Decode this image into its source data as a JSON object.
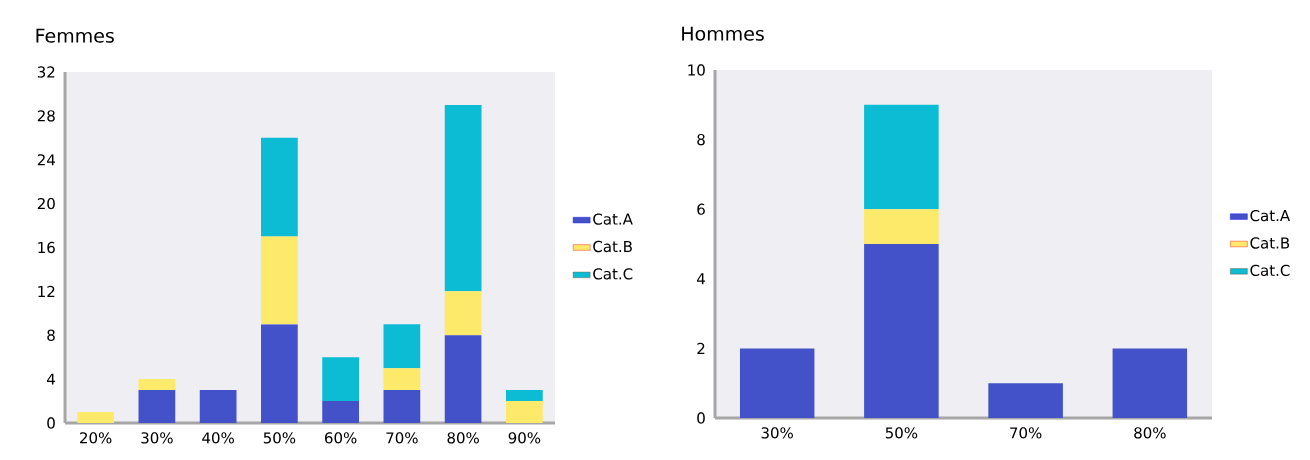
{
  "chart_data": [
    {
      "type": "bar",
      "title": "Femmes",
      "stacked": true,
      "legend": "right",
      "categories": [
        "20%",
        "30%",
        "40%",
        "50%",
        "60%",
        "70%",
        "80%",
        "90%"
      ],
      "ylim": [
        0,
        32
      ],
      "yticks": [
        0,
        4,
        8,
        12,
        16,
        20,
        24,
        28,
        32
      ],
      "series": [
        {
          "name": "Cat.A",
          "color": "#4352c8",
          "values": [
            0,
            3,
            3,
            9,
            2,
            3,
            8,
            0
          ]
        },
        {
          "name": "Cat.B",
          "color": "#fde96a",
          "values": [
            1,
            1,
            0,
            8,
            0,
            2,
            4,
            2
          ]
        },
        {
          "name": "Cat.C",
          "color": "#0bbcd4",
          "values": [
            0,
            0,
            0,
            9,
            4,
            4,
            17,
            1
          ]
        }
      ]
    },
    {
      "type": "bar",
      "title": "Hommes",
      "stacked": true,
      "legend": "right",
      "categories": [
        "30%",
        "50%",
        "70%",
        "80%"
      ],
      "ylim": [
        0,
        10
      ],
      "yticks": [
        0,
        2,
        4,
        6,
        8,
        10
      ],
      "series": [
        {
          "name": "Cat.A",
          "color": "#4352c8",
          "values": [
            2,
            5,
            1,
            2
          ]
        },
        {
          "name": "Cat.B",
          "color": "#fde96a",
          "values": [
            0,
            1,
            0,
            0
          ]
        },
        {
          "name": "Cat.C",
          "color": "#0bbcd4",
          "values": [
            0,
            3,
            0,
            0
          ]
        }
      ]
    }
  ]
}
